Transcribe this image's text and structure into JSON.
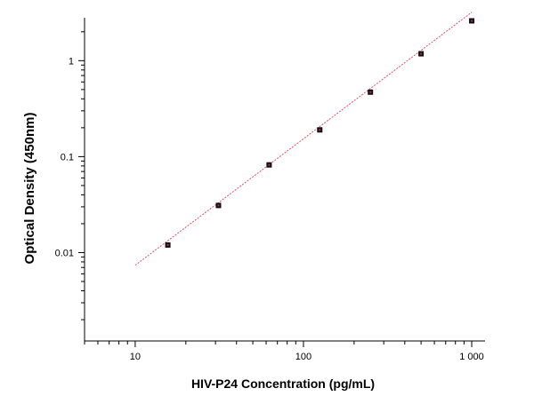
{
  "chart_data": {
    "type": "scatter",
    "xlabel": "HIV-P24 Concentration (pg/mL)",
    "ylabel": "Optical Density (450nm)",
    "x_scale": "log",
    "y_scale": "log",
    "xlim": [
      5,
      1200
    ],
    "ylim": [
      0.0012,
      2.8
    ],
    "x_ticks": [
      10,
      100,
      1000
    ],
    "x_tick_labels": [
      "10",
      "100",
      "1 000"
    ],
    "y_ticks": [
      0.01,
      0.1,
      1
    ],
    "y_tick_labels": [
      "0.01",
      "0.1",
      "1"
    ],
    "grid": false,
    "series": [
      {
        "points": [
          {
            "x": 15.63,
            "y": 0.012
          },
          {
            "x": 31.25,
            "y": 0.031
          },
          {
            "x": 62.5,
            "y": 0.082
          },
          {
            "x": 125,
            "y": 0.19
          },
          {
            "x": 250,
            "y": 0.47
          },
          {
            "x": 500,
            "y": 1.18
          },
          {
            "x": 1000,
            "y": 2.6
          }
        ],
        "color": "#111111"
      }
    ],
    "fit_line": {
      "x_range": [
        10,
        1000
      ],
      "slope": 1.318,
      "intercept_log10": -3.45,
      "color": "#e0506a"
    }
  }
}
